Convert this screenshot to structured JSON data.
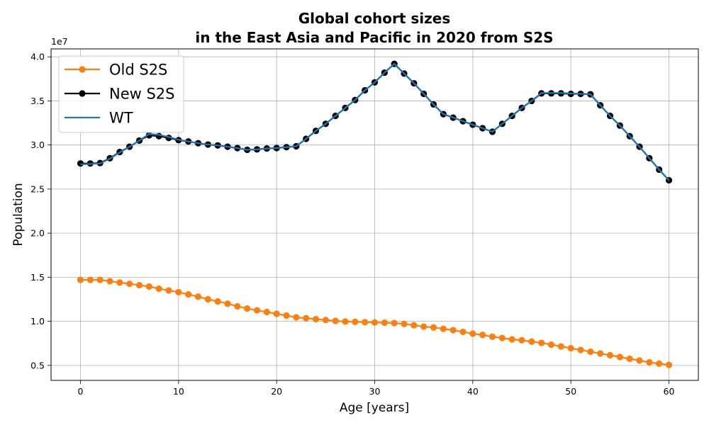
{
  "chart_data": {
    "type": "line",
    "title_lines": [
      "Global cohort sizes",
      "in the East Asia and Pacific in 2020 from S2S"
    ],
    "xlabel": "Age [years]",
    "ylabel": "Population",
    "offset_text": "1e7",
    "xlim": [
      -3,
      63
    ],
    "ylim": [
      3300000,
      40900000
    ],
    "x_ticks": [
      0,
      10,
      20,
      30,
      40,
      50,
      60
    ],
    "x_tick_labels": [
      "0",
      "10",
      "20",
      "30",
      "40",
      "50",
      "60"
    ],
    "y_ticks": [
      5000000,
      10000000,
      15000000,
      20000000,
      25000000,
      30000000,
      35000000,
      40000000
    ],
    "y_tick_labels": [
      "0.5",
      "1.0",
      "1.5",
      "2.0",
      "2.5",
      "3.0",
      "3.5",
      "4.0"
    ],
    "grid": true,
    "legend_position": "top-left",
    "x": [
      0,
      1,
      2,
      3,
      4,
      5,
      6,
      7,
      8,
      9,
      10,
      11,
      12,
      13,
      14,
      15,
      16,
      17,
      18,
      19,
      20,
      21,
      22,
      23,
      24,
      25,
      26,
      27,
      28,
      29,
      30,
      31,
      32,
      33,
      34,
      35,
      36,
      37,
      38,
      39,
      40,
      41,
      42,
      43,
      44,
      45,
      46,
      47,
      48,
      49,
      50,
      51,
      52,
      53,
      54,
      55,
      56,
      57,
      58,
      59,
      60
    ],
    "series": [
      {
        "name": "Old S2S",
        "color": "#ff7f0e",
        "marker": true,
        "values": [
          14700000,
          14700000,
          14700000,
          14550000,
          14400000,
          14250000,
          14100000,
          13950000,
          13700000,
          13500000,
          13300000,
          13050000,
          12800000,
          12500000,
          12250000,
          12000000,
          11700000,
          11450000,
          11250000,
          11050000,
          10850000,
          10650000,
          10450000,
          10350000,
          10250000,
          10150000,
          10050000,
          9980000,
          9940000,
          9900000,
          9870000,
          9840000,
          9800000,
          9700000,
          9550000,
          9400000,
          9300000,
          9150000,
          9000000,
          8800000,
          8600000,
          8450000,
          8250000,
          8100000,
          7950000,
          7850000,
          7700000,
          7550000,
          7350000,
          7150000,
          6950000,
          6750000,
          6550000,
          6350000,
          6150000,
          5950000,
          5750000,
          5550000,
          5350000,
          5200000,
          5050000
        ]
      },
      {
        "name": "New S2S",
        "color": "#000000",
        "marker": true,
        "values": [
          27900000,
          27900000,
          27950000,
          28500000,
          29200000,
          29800000,
          30500000,
          31100000,
          31000000,
          30800000,
          30550000,
          30400000,
          30200000,
          30050000,
          29950000,
          29800000,
          29650000,
          29450000,
          29500000,
          29600000,
          29650000,
          29750000,
          29850000,
          30700000,
          31600000,
          32400000,
          33300000,
          34200000,
          35100000,
          36200000,
          37100000,
          38200000,
          39200000,
          38100000,
          37000000,
          35800000,
          34600000,
          33500000,
          33100000,
          32700000,
          32300000,
          31900000,
          31500000,
          32400000,
          33300000,
          34200000,
          35000000,
          35850000,
          35850000,
          35850000,
          35800000,
          35800000,
          35750000,
          34500000,
          33300000,
          32200000,
          31000000,
          29800000,
          28500000,
          27200000,
          26000000
        ]
      },
      {
        "name": "WT",
        "color": "#1f77b4",
        "marker": false,
        "values": [
          27800000,
          27850000,
          27900000,
          28450000,
          29150000,
          29800000,
          30500000,
          31250000,
          31150000,
          30900000,
          30600000,
          30400000,
          30200000,
          30050000,
          29950000,
          29800000,
          29650000,
          29450000,
          29500000,
          29600000,
          29650000,
          29750000,
          29850000,
          30700000,
          31600000,
          32400000,
          33300000,
          34200000,
          35100000,
          36200000,
          37100000,
          38200000,
          39200000,
          38100000,
          37000000,
          35800000,
          34600000,
          33500000,
          33100000,
          32700000,
          32300000,
          31900000,
          31500000,
          32400000,
          33300000,
          34200000,
          35000000,
          35900000,
          35900000,
          35900000,
          35850000,
          35800000,
          35750000,
          34500000,
          33300000,
          32200000,
          31000000,
          29800000,
          28500000,
          27200000,
          26000000
        ]
      }
    ]
  }
}
